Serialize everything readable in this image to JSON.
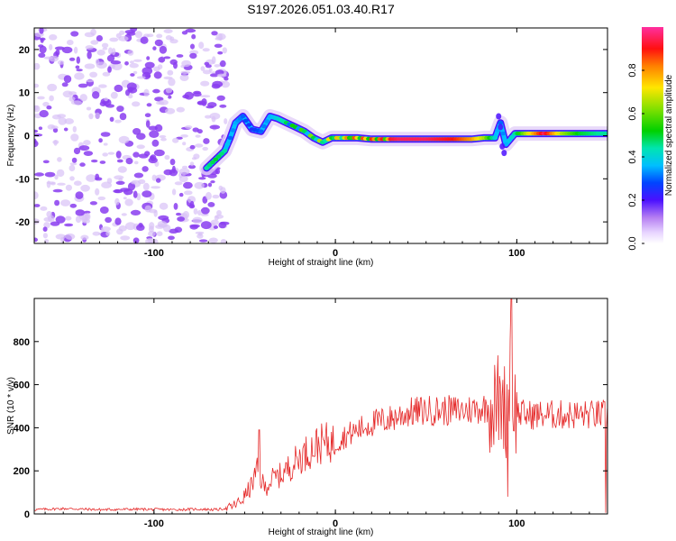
{
  "figure_title": "S197.2026.051.03.40.R17",
  "chart_data": [
    {
      "type": "heatmap",
      "title": "S197.2026.051.03.40.R17",
      "xlabel": "Height of straight line (km)",
      "ylabel": "Frequency (Hz)",
      "xlim": [
        -166,
        150
      ],
      "ylim": [
        -25,
        25
      ],
      "x_ticks": [
        -100,
        0,
        100
      ],
      "x_tick_labels": [
        "-100",
        "0",
        "100"
      ],
      "y_ticks": [
        -20,
        -10,
        0,
        10,
        20
      ],
      "y_tick_labels": [
        "-20",
        "-10",
        "0",
        "10",
        "20"
      ],
      "colorbar": {
        "label": "Normalized spectral amplitude",
        "range": [
          0,
          1
        ],
        "ticks": [
          0.0,
          0.2,
          0.4,
          0.6,
          0.8
        ],
        "tick_labels": [
          "0.0",
          "0.2",
          "0.4",
          "0.6",
          "0.8"
        ]
      },
      "noise_region_x": [
        -166,
        -64
      ],
      "ridge": [
        {
          "x": -71,
          "f": -7.5,
          "a": 0.45
        },
        {
          "x": -66,
          "f": -5.5,
          "a": 0.5
        },
        {
          "x": -61,
          "f": -3.5,
          "a": 0.45
        },
        {
          "x": -58,
          "f": -0.5,
          "a": 0.3
        },
        {
          "x": -55,
          "f": 3.0,
          "a": 0.35
        },
        {
          "x": -51,
          "f": 4.5,
          "a": 0.3
        },
        {
          "x": -46,
          "f": 1.5,
          "a": 0.25
        },
        {
          "x": -41,
          "f": 1.0,
          "a": 0.3
        },
        {
          "x": -36,
          "f": 4.5,
          "a": 0.35
        },
        {
          "x": -32,
          "f": 4.0,
          "a": 0.4
        },
        {
          "x": -27,
          "f": 3.0,
          "a": 0.5
        },
        {
          "x": -22,
          "f": 2.0,
          "a": 0.55
        },
        {
          "x": -17,
          "f": 1.0,
          "a": 0.55
        },
        {
          "x": -12,
          "f": -0.5,
          "a": 0.6
        },
        {
          "x": -7,
          "f": -1.5,
          "a": 0.6
        },
        {
          "x": -2,
          "f": -0.5,
          "a": 0.7
        },
        {
          "x": 5,
          "f": -0.5,
          "a": 0.75
        },
        {
          "x": 12,
          "f": -0.5,
          "a": 0.8
        },
        {
          "x": 20,
          "f": -0.8,
          "a": 0.85
        },
        {
          "x": 35,
          "f": -0.8,
          "a": 0.95
        },
        {
          "x": 50,
          "f": -0.8,
          "a": 0.95
        },
        {
          "x": 65,
          "f": -0.8,
          "a": 0.9
        },
        {
          "x": 75,
          "f": -0.8,
          "a": 0.8
        },
        {
          "x": 82,
          "f": -0.5,
          "a": 0.65
        },
        {
          "x": 88,
          "f": -0.5,
          "a": 0.4
        },
        {
          "x": 91,
          "f": 3.0,
          "a": 0.3
        },
        {
          "x": 94,
          "f": -2.0,
          "a": 0.35
        },
        {
          "x": 99,
          "f": 0.5,
          "a": 0.45
        },
        {
          "x": 105,
          "f": 0.5,
          "a": 0.65
        },
        {
          "x": 115,
          "f": 0.5,
          "a": 0.95
        },
        {
          "x": 125,
          "f": 0.5,
          "a": 0.65
        },
        {
          "x": 135,
          "f": 0.5,
          "a": 0.5
        },
        {
          "x": 145,
          "f": 0.5,
          "a": 0.45
        },
        {
          "x": 150,
          "f": 0.5,
          "a": 0.45
        }
      ]
    },
    {
      "type": "line",
      "xlabel": "Height of straight line (km)",
      "ylabel": "SNR (10 * v/v)",
      "xlim": [
        -166,
        150
      ],
      "ylim": [
        0,
        1000
      ],
      "x_ticks": [
        -100,
        0,
        100
      ],
      "x_tick_labels": [
        "-100",
        "0",
        "100"
      ],
      "y_ticks": [
        0,
        200,
        400,
        600,
        800
      ],
      "y_tick_labels": [
        "0",
        "200",
        "400",
        "600",
        "800"
      ],
      "line_color": "#e52a2a",
      "series": [
        {
          "name": "SNR",
          "x": [
            -166,
            -150,
            -130,
            -110,
            -90,
            -75,
            -65,
            -58,
            -52,
            -47,
            -43,
            -39,
            -35,
            -30,
            -25,
            -20,
            -15,
            -10,
            -5,
            0,
            5,
            10,
            15,
            20,
            25,
            30,
            40,
            50,
            60,
            70,
            80,
            88,
            92,
            94,
            96,
            97,
            98,
            100,
            105,
            110,
            120,
            130,
            140,
            148,
            150
          ],
          "y": [
            20,
            25,
            20,
            22,
            20,
            22,
            20,
            30,
            60,
            120,
            200,
            120,
            160,
            180,
            220,
            260,
            290,
            320,
            330,
            330,
            360,
            380,
            400,
            420,
            430,
            440,
            470,
            480,
            480,
            480,
            490,
            500,
            560,
            450,
            650,
            1000,
            500,
            470,
            460,
            460,
            460,
            460,
            460,
            460,
            460
          ]
        }
      ],
      "spikes": [
        {
          "x": -42,
          "y": 390
        },
        {
          "x": 91,
          "y": 600
        },
        {
          "x": 97,
          "y": 1000
        },
        {
          "x": 95,
          "y": 80
        },
        {
          "x": 149,
          "y": 5
        }
      ]
    }
  ]
}
